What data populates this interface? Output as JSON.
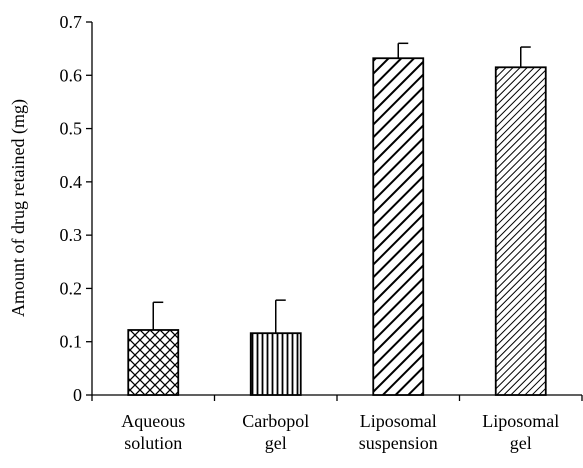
{
  "chart_data": {
    "type": "bar",
    "y_label": "Amount of drug retained (mg)",
    "categories": [
      "Aqueous solution",
      "Carbopol gel",
      "Liposomal suspension",
      "Liposomal gel"
    ],
    "values": [
      0.122,
      0.116,
      0.632,
      0.615
    ],
    "errors": [
      0.052,
      0.062,
      0.028,
      0.038
    ],
    "patterns": [
      "crosshatch",
      "vertical",
      "diagonal",
      "diagonal-dense"
    ],
    "color": "#000000",
    "ylim": [
      0,
      0.7
    ],
    "yticks": [
      0,
      0.1,
      0.2,
      0.3,
      0.4,
      0.5,
      0.6,
      0.7
    ],
    "grid": false
  }
}
